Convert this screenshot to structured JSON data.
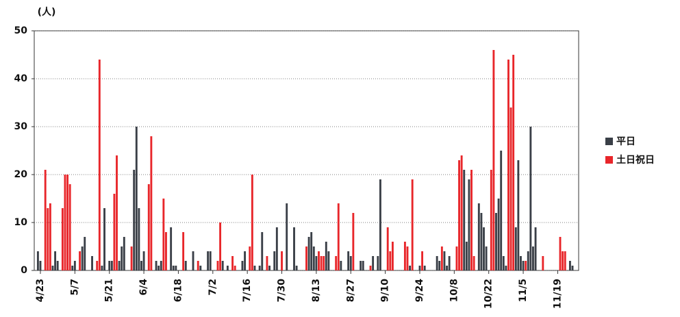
{
  "chart_data": {
    "type": "bar",
    "y_unit": "(人)",
    "categories": [
      null,
      null,
      "4/23",
      null,
      null,
      null,
      null,
      null,
      null,
      null,
      null,
      null,
      null,
      null,
      null,
      null,
      "5/7",
      null,
      null,
      null,
      null,
      null,
      null,
      null,
      null,
      null,
      null,
      null,
      null,
      null,
      "5/21",
      null,
      null,
      null,
      null,
      null,
      null,
      null,
      null,
      null,
      null,
      null,
      null,
      null,
      "6/4",
      null,
      null,
      null,
      null,
      null,
      null,
      null,
      null,
      null,
      null,
      null,
      null,
      null,
      "6/18",
      null,
      null,
      null,
      null,
      null,
      null,
      null,
      null,
      null,
      null,
      null,
      null,
      null,
      "7/2",
      null,
      null,
      null,
      null,
      null,
      null,
      null,
      null,
      null,
      null,
      null,
      null,
      null,
      "7/16",
      null,
      null,
      null,
      null,
      null,
      null,
      null,
      null,
      null,
      null,
      null,
      null,
      null,
      "7/30",
      null,
      null,
      null,
      null,
      null,
      null,
      null,
      null,
      null,
      null,
      null,
      null,
      null,
      "8/13",
      null,
      null,
      null,
      null,
      null,
      null,
      null,
      null,
      null,
      null,
      null,
      null,
      null,
      "8/27",
      null,
      null,
      null,
      null,
      null,
      null,
      null,
      null,
      null,
      null,
      null,
      null,
      null,
      "9/10",
      null,
      null,
      null,
      null,
      null,
      null,
      null,
      null,
      null,
      null,
      null,
      null,
      null,
      "9/24",
      null,
      null,
      null,
      null,
      null,
      null,
      null,
      null,
      null,
      null,
      null,
      null,
      null,
      "10/8",
      null,
      null,
      null,
      null,
      null,
      null,
      null,
      null,
      null,
      null,
      null,
      null,
      null,
      "10/22",
      null,
      null,
      null,
      null,
      null,
      null,
      null,
      null,
      null,
      null,
      null,
      null,
      null,
      "11/5",
      null,
      null,
      null,
      null,
      null,
      null,
      null,
      null,
      null,
      null,
      null,
      null,
      null,
      "11/19",
      null,
      null,
      null,
      null,
      null,
      null,
      null,
      null
    ],
    "series": [
      {
        "name": "平日",
        "color": "#3a3f47",
        "values": [
          null,
          4,
          2,
          null,
          null,
          null,
          null,
          1,
          4,
          2,
          null,
          null,
          null,
          null,
          null,
          1,
          2,
          null,
          null,
          5,
          7,
          null,
          null,
          3,
          null,
          null,
          null,
          1,
          13,
          null,
          2,
          2,
          null,
          null,
          2,
          5,
          7,
          null,
          null,
          null,
          21,
          30,
          13,
          2,
          4,
          null,
          null,
          null,
          null,
          2,
          1,
          2,
          null,
          null,
          null,
          9,
          1,
          1,
          null,
          null,
          null,
          2,
          null,
          null,
          4,
          null,
          null,
          1,
          null,
          null,
          4,
          4,
          null,
          null,
          null,
          null,
          2,
          null,
          1,
          null,
          null,
          null,
          null,
          null,
          2,
          4,
          null,
          null,
          null,
          1,
          null,
          1,
          8,
          null,
          null,
          1,
          null,
          4,
          9,
          null,
          null,
          null,
          14,
          null,
          null,
          9,
          1,
          null,
          null,
          null,
          null,
          7,
          8,
          5,
          3,
          null,
          null,
          null,
          6,
          4,
          null,
          null,
          null,
          null,
          2,
          null,
          null,
          4,
          3,
          null,
          null,
          null,
          2,
          2,
          null,
          null,
          null,
          3,
          null,
          3,
          19,
          null,
          null,
          null,
          null,
          null,
          null,
          null,
          null,
          null,
          null,
          null,
          1,
          null,
          null,
          null,
          1,
          null,
          1,
          null,
          null,
          null,
          null,
          3,
          2,
          null,
          4,
          1,
          3,
          null,
          null,
          null,
          null,
          null,
          21,
          6,
          19,
          null,
          null,
          null,
          14,
          12,
          9,
          5,
          null,
          null,
          null,
          12,
          15,
          25,
          3,
          1,
          null,
          null,
          null,
          9,
          23,
          3,
          2,
          null,
          4,
          30,
          5,
          9,
          null,
          null,
          null,
          null,
          null,
          null,
          null,
          null,
          null,
          null,
          null,
          null,
          null,
          2,
          1,
          null,
          null
        ]
      },
      {
        "name": "土日祝日",
        "color": "#e8262a",
        "values": [
          null,
          null,
          null,
          null,
          21,
          13,
          14,
          null,
          null,
          null,
          null,
          13,
          20,
          20,
          18,
          null,
          null,
          null,
          4,
          null,
          null,
          null,
          null,
          null,
          null,
          2,
          44,
          null,
          null,
          null,
          null,
          null,
          16,
          24,
          null,
          null,
          null,
          null,
          null,
          5,
          null,
          null,
          null,
          null,
          null,
          null,
          18,
          28,
          null,
          null,
          null,
          null,
          15,
          8,
          null,
          null,
          null,
          null,
          null,
          null,
          8,
          null,
          null,
          null,
          null,
          null,
          2,
          null,
          null,
          null,
          null,
          null,
          null,
          null,
          2,
          10,
          null,
          null,
          null,
          null,
          3,
          1,
          null,
          null,
          null,
          null,
          null,
          5,
          20,
          null,
          null,
          null,
          null,
          null,
          3,
          null,
          null,
          null,
          null,
          null,
          4,
          null,
          null,
          null,
          null,
          null,
          null,
          null,
          null,
          null,
          5,
          null,
          null,
          null,
          null,
          4,
          3,
          3,
          null,
          null,
          null,
          null,
          3,
          14,
          null,
          null,
          null,
          null,
          null,
          12,
          null,
          null,
          null,
          null,
          null,
          null,
          1,
          null,
          null,
          null,
          null,
          null,
          null,
          9,
          4,
          6,
          null,
          null,
          null,
          null,
          6,
          5,
          null,
          19,
          null,
          null,
          null,
          4,
          null,
          null,
          null,
          null,
          null,
          null,
          null,
          5,
          null,
          null,
          null,
          null,
          null,
          5,
          23,
          24,
          null,
          null,
          null,
          21,
          3,
          null,
          null,
          null,
          null,
          null,
          null,
          21,
          46,
          null,
          null,
          null,
          null,
          null,
          44,
          34,
          45,
          null,
          null,
          null,
          null,
          2,
          null,
          null,
          null,
          null,
          null,
          null,
          3,
          null,
          null,
          null,
          null,
          null,
          null,
          7,
          4,
          4,
          null,
          null,
          null,
          null,
          null
        ]
      }
    ],
    "ylim": [
      0,
      50
    ],
    "yticks": [
      0,
      10,
      20,
      30,
      40,
      50
    ],
    "grid": true,
    "legend": "right"
  }
}
